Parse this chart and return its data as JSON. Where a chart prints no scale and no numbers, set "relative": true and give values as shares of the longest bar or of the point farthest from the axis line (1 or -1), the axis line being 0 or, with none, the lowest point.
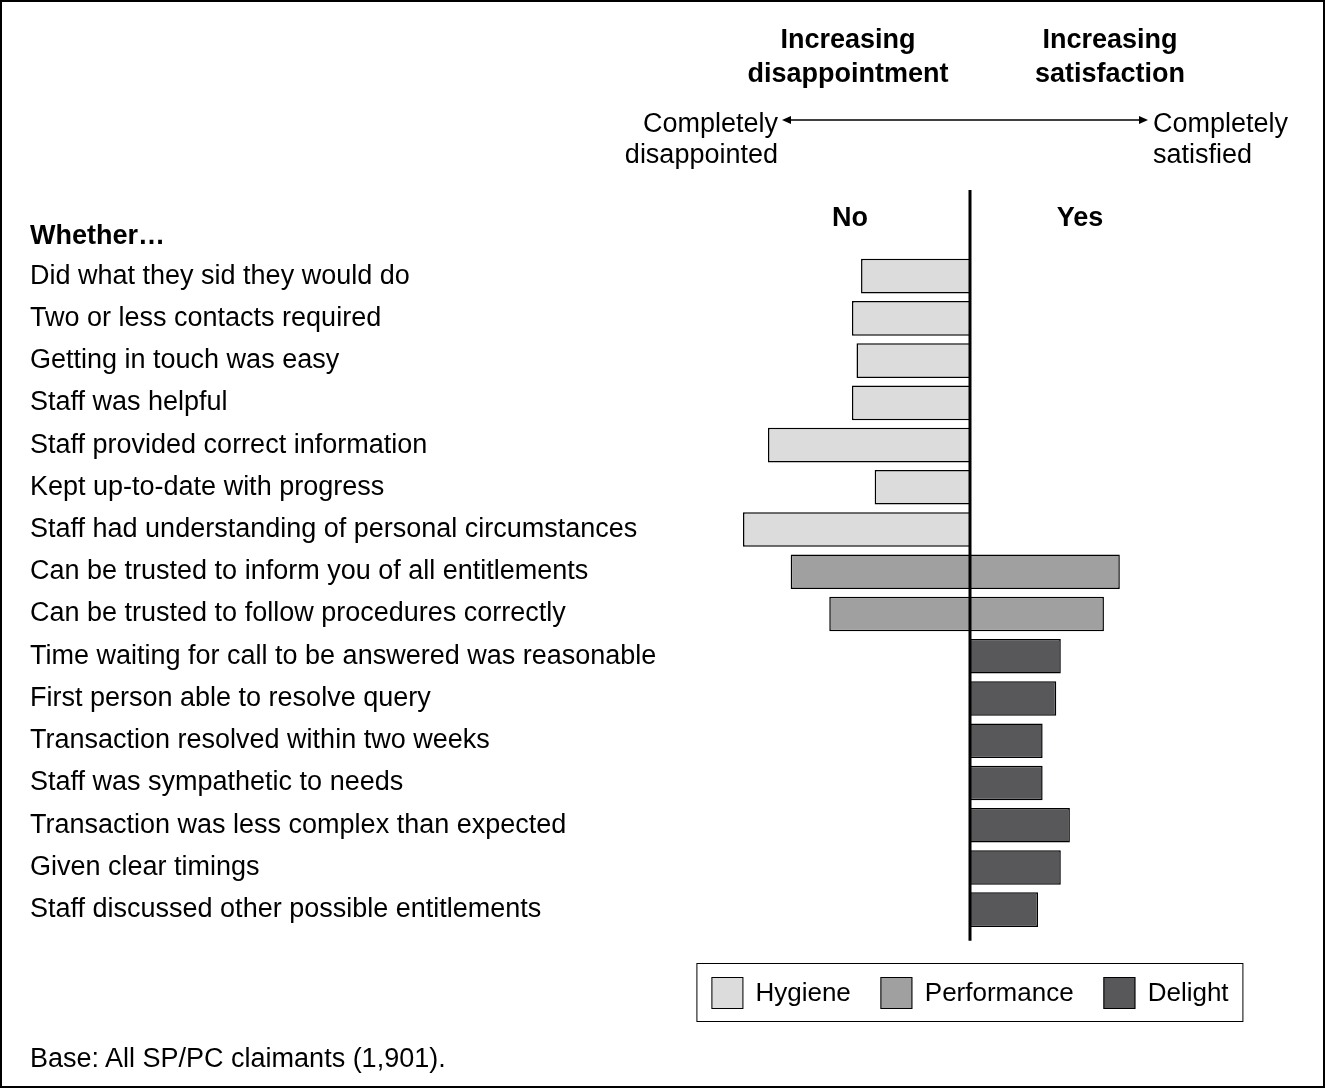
{
  "chart_data": {
    "type": "bar",
    "orientation": "horizontal",
    "stacked": true,
    "relative": true,
    "ylabel": "Whether…",
    "categories": [
      "Did what they sid they would do",
      "Two or less contacts required",
      "Getting in touch was easy",
      "Staff was helpful",
      "Staff provided correct information",
      "Kept up-to-date with progress",
      "Staff had understanding of personal circumstances",
      "Can be trusted to inform you of all entitlements",
      "Can be trusted to follow procedures correctly",
      "Time waiting for call to be answered was reasonable",
      "First person able to resolve query",
      "Transaction resolved within two weeks",
      "Staff was sympathetic to needs",
      "Transaction was less complex than expected",
      "Given clear timings",
      "Staff discussed other possible entitlements"
    ],
    "series": [
      {
        "name": "Hygiene",
        "color": "#dcdcdc",
        "values": [
          -0.48,
          -0.52,
          -0.5,
          -0.52,
          -0.89,
          -0.42,
          -1,
          null,
          null,
          null,
          null,
          null,
          null,
          null,
          null,
          null
        ]
      },
      {
        "name": "Performance",
        "color": "#a0a0a0",
        "values": [
          null,
          null,
          null,
          null,
          null,
          null,
          null,
          -0.79,
          -0.62,
          null,
          null,
          null,
          null,
          null,
          null,
          null
        ]
      },
      {
        "color": "#a0a0a0",
        "values": [
          null,
          null,
          null,
          null,
          null,
          null,
          null,
          0.66,
          0.59,
          null,
          null,
          null,
          null,
          null,
          null,
          null
        ]
      },
      {
        "name": "Delight",
        "color": "#58585a",
        "values": [
          null,
          null,
          null,
          null,
          null,
          null,
          null,
          null,
          null,
          0.4,
          0.38,
          0.32,
          0.32,
          0.44,
          0.4,
          0.3
        ]
      }
    ],
    "legend": "bottom",
    "annotations": [
      "Increasing disappointment",
      "Increasing satisfaction",
      "Completely disappointed",
      "Completely satisfied",
      "No",
      "Yes",
      "Base: All SP/PC claimants (1,901)."
    ]
  }
}
